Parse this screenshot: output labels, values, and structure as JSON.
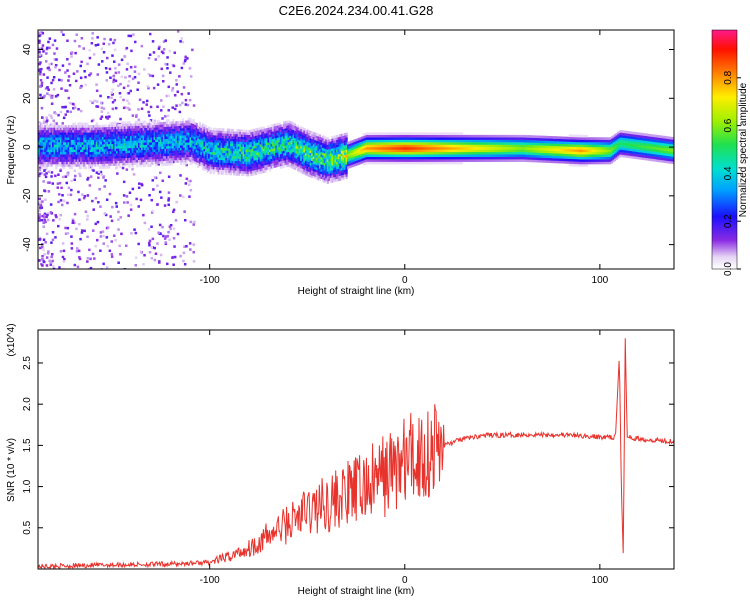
{
  "title": "C2E6.2024.234.00.41.G28",
  "chart_data": [
    {
      "type": "heatmap",
      "xlabel": "Height of straight line (km)",
      "ylabel": "Frequency (Hz)",
      "xlim": [
        -188,
        138
      ],
      "ylim": [
        -50,
        48
      ],
      "xticks": [
        -100,
        0,
        100
      ],
      "yticks": [
        -40,
        -20,
        0,
        20,
        40
      ],
      "colorbar": {
        "label": "Normalized spectral amplitude",
        "range": [
          0,
          1
        ],
        "ticks": [
          "0.0",
          "0.2",
          "0.4",
          "0.6",
          "0.8"
        ]
      },
      "ridge": [
        {
          "x": -185,
          "y": 1,
          "amp": 0.35
        },
        {
          "x": -160,
          "y": 1,
          "amp": 0.35
        },
        {
          "x": -130,
          "y": 2,
          "amp": 0.35
        },
        {
          "x": -110,
          "y": 3,
          "amp": 0.35
        },
        {
          "x": -100,
          "y": -1,
          "amp": 0.4
        },
        {
          "x": -80,
          "y": -2,
          "amp": 0.45
        },
        {
          "x": -60,
          "y": 2,
          "amp": 0.45
        },
        {
          "x": -50,
          "y": -2,
          "amp": 0.5
        },
        {
          "x": -40,
          "y": -5,
          "amp": 0.5
        },
        {
          "x": -30,
          "y": -3,
          "amp": 0.6
        },
        {
          "x": -20,
          "y": 0,
          "amp": 0.8
        },
        {
          "x": 0,
          "y": 0,
          "amp": 0.9
        },
        {
          "x": 20,
          "y": 0,
          "amp": 0.8
        },
        {
          "x": 60,
          "y": 0,
          "amp": 0.6
        },
        {
          "x": 90,
          "y": -1,
          "amp": 0.8
        },
        {
          "x": 105,
          "y": -1,
          "amp": 0.6
        },
        {
          "x": 110,
          "y": 2,
          "amp": 0.5
        },
        {
          "x": 138,
          "y": -1,
          "amp": 0.6
        }
      ]
    },
    {
      "type": "line",
      "xlabel": "Height of straight line (km)",
      "ylabel": "SNR (10 * v/v)",
      "yscale_label": "(x10^4)",
      "xlim": [
        -188,
        138
      ],
      "ylim": [
        0,
        2.9
      ],
      "xticks": [
        -100,
        0,
        100
      ],
      "yticks": [
        0.5,
        1.0,
        1.5,
        2.0,
        2.5
      ],
      "series": [
        {
          "color": "#e8322c",
          "points": [
            [
              -188,
              0.03
            ],
            [
              -150,
              0.05
            ],
            [
              -120,
              0.06
            ],
            [
              -100,
              0.08
            ],
            [
              -90,
              0.15
            ],
            [
              -80,
              0.25
            ],
            [
              -70,
              0.4
            ],
            [
              -60,
              0.55
            ],
            [
              -50,
              0.7
            ],
            [
              -40,
              0.8
            ],
            [
              -30,
              0.9
            ],
            [
              -20,
              1.0
            ],
            [
              -10,
              1.15
            ],
            [
              0,
              1.3
            ],
            [
              10,
              1.4
            ],
            [
              20,
              1.5
            ],
            [
              30,
              1.58
            ],
            [
              40,
              1.62
            ],
            [
              60,
              1.63
            ],
            [
              80,
              1.63
            ],
            [
              100,
              1.6
            ],
            [
              108,
              1.6
            ],
            [
              110,
              2.6
            ],
            [
              111,
              1.0
            ],
            [
              112,
              0.15
            ],
            [
              113,
              2.8
            ],
            [
              114,
              1.6
            ],
            [
              120,
              1.58
            ],
            [
              138,
              1.55
            ]
          ]
        }
      ]
    }
  ]
}
